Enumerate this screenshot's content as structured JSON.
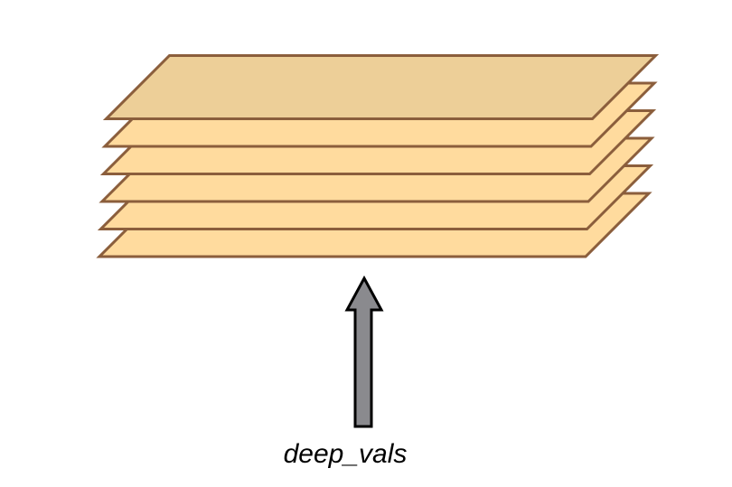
{
  "diagram": {
    "label": "deep_vals",
    "layer_count": 6,
    "colors": {
      "layer_fill": "#FFDB9E",
      "top_layer_fill": "#EDCF98",
      "layer_stroke": "#8B5E3C",
      "arrow_fill": "#8A8A8E",
      "arrow_stroke": "#000000"
    }
  }
}
